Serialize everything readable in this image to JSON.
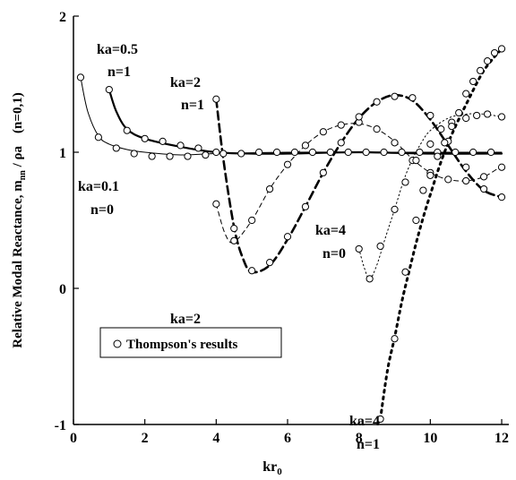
{
  "chart_data": {
    "type": "line",
    "title": "",
    "xlabel": "kr",
    "xlabel_subscript": "0",
    "ylabel": "Relative Modal Reactance,  m",
    "ylabel_subscript": "nn",
    "ylabel_suffix": " / ρa",
    "ylabel_note": "(n=0,1)",
    "xlim": [
      0,
      12.2
    ],
    "ylim": [
      -1,
      2
    ],
    "xticks": [
      0,
      2,
      4,
      6,
      8,
      10,
      12
    ],
    "yticks": [
      -1,
      0,
      1,
      2
    ],
    "xtick_labels": [
      "0",
      "2",
      "4",
      "6",
      "8",
      "10",
      "12"
    ],
    "ytick_labels": [
      "-1",
      "0",
      "1",
      "2"
    ],
    "grid": false,
    "legend": {
      "marker": "open-circle",
      "label": "Thompson's results",
      "position": "lower-left"
    },
    "series": [
      {
        "label_lines": [
          "ka=0.1",
          "n=0"
        ],
        "style": "solid-thin",
        "line": {
          "x": [
            0.2,
            0.4,
            0.7,
            1.0,
            1.5,
            2.0,
            3.0,
            4.0,
            6.0,
            8.0,
            10.0,
            12.0
          ],
          "y": [
            1.55,
            1.3,
            1.12,
            1.06,
            1.02,
            1.0,
            0.98,
            0.99,
            1.0,
            1.0,
            1.0,
            1.0
          ]
        },
        "markers": {
          "x": [
            0.2,
            0.7,
            1.2,
            1.7,
            2.2,
            2.7,
            3.2,
            3.7,
            4.2,
            4.7,
            5.2,
            5.7,
            6.2,
            6.7,
            7.2,
            7.7,
            8.2,
            8.7,
            9.2,
            9.7,
            10.2,
            10.7,
            11.2,
            11.7
          ],
          "y": [
            1.55,
            1.11,
            1.03,
            0.99,
            0.97,
            0.97,
            0.97,
            0.98,
            0.99,
            0.99,
            1.0,
            1.0,
            1.0,
            1.0,
            1.0,
            1.0,
            1.0,
            1.0,
            1.0,
            1.0,
            1.0,
            1.0,
            1.0,
            1.0
          ]
        }
      },
      {
        "label_lines": [
          "ka=0.5",
          "n=1"
        ],
        "style": "solid-thick",
        "line": {
          "x": [
            1.0,
            1.2,
            1.5,
            2.0,
            3.0,
            4.0,
            5.0,
            6.0,
            8.0,
            10.0,
            12.0
          ],
          "y": [
            1.46,
            1.3,
            1.17,
            1.1,
            1.04,
            1.0,
            0.99,
            0.99,
            1.0,
            0.99,
            0.99
          ]
        },
        "markers": {
          "x": [
            1.0,
            1.5,
            2.0,
            2.5,
            3.0,
            3.5,
            4.0
          ],
          "y": [
            1.46,
            1.16,
            1.1,
            1.08,
            1.05,
            1.03,
            1.0
          ]
        }
      },
      {
        "label_lines": [
          "ka=2",
          "n=0"
        ],
        "style": "dashed-thin",
        "line": {
          "x": [
            4.0,
            4.25,
            4.5,
            5.0,
            5.5,
            6.0,
            6.5,
            7.0,
            7.5,
            8.0,
            8.5,
            9.0,
            9.5,
            10.0,
            10.5,
            11.0,
            11.5,
            12.0
          ],
          "y": [
            0.62,
            0.4,
            0.34,
            0.5,
            0.73,
            0.91,
            1.05,
            1.15,
            1.2,
            1.21,
            1.17,
            1.08,
            0.95,
            0.85,
            0.8,
            0.79,
            0.82,
            0.9
          ]
        },
        "markers": {
          "x": [
            4.0,
            4.5,
            5.0,
            5.5,
            6.0,
            6.5,
            7.0,
            7.5,
            8.0,
            8.5,
            9.0,
            9.5,
            10.0,
            10.5,
            11.0,
            11.5,
            12.0
          ],
          "y": [
            0.62,
            0.35,
            0.5,
            0.73,
            0.91,
            1.05,
            1.15,
            1.2,
            1.22,
            1.17,
            1.07,
            0.94,
            0.85,
            0.8,
            0.79,
            0.82,
            0.89
          ]
        }
      },
      {
        "label_lines": [
          "ka=2",
          "n=1"
        ],
        "style": "dashed-thick",
        "line": {
          "x": [
            4.0,
            4.2,
            4.5,
            4.75,
            5.0,
            5.5,
            6.0,
            6.5,
            7.0,
            7.5,
            8.0,
            8.5,
            9.0,
            9.5,
            10.0,
            10.5,
            11.0,
            11.5,
            12.0
          ],
          "y": [
            1.39,
            0.95,
            0.45,
            0.22,
            0.12,
            0.17,
            0.36,
            0.6,
            0.85,
            1.07,
            1.25,
            1.37,
            1.42,
            1.38,
            1.24,
            1.05,
            0.86,
            0.72,
            0.67
          ]
        },
        "markers": {
          "x": [
            4.0,
            4.5,
            5.0,
            5.5,
            6.0,
            6.5,
            7.0,
            7.5,
            8.0,
            8.5,
            9.0,
            9.5,
            10.0,
            10.5,
            11.0,
            11.5,
            12.0
          ],
          "y": [
            1.39,
            0.44,
            0.13,
            0.19,
            0.38,
            0.6,
            0.85,
            1.07,
            1.26,
            1.37,
            1.41,
            1.4,
            1.27,
            1.08,
            0.89,
            0.73,
            0.67
          ]
        }
      },
      {
        "label_lines": [
          "ka=4",
          "n=0"
        ],
        "style": "dotted-thin",
        "line": {
          "x": [
            8.0,
            8.15,
            8.3,
            8.5,
            8.75,
            9.0,
            9.25,
            9.5,
            9.75,
            10.0,
            10.5,
            11.0,
            11.5,
            12.0
          ],
          "y": [
            0.29,
            0.15,
            0.07,
            0.17,
            0.38,
            0.58,
            0.79,
            0.95,
            1.07,
            1.16,
            1.25,
            1.28,
            1.28,
            1.26
          ]
        },
        "markers": {
          "x": [
            8.0,
            8.3,
            8.6,
            9.0,
            9.3,
            9.6,
            10.0,
            10.3,
            10.6,
            11.0,
            11.3,
            11.6,
            12.0
          ],
          "y": [
            0.29,
            0.07,
            0.31,
            0.58,
            0.78,
            0.94,
            1.06,
            1.17,
            1.22,
            1.25,
            1.27,
            1.28,
            1.26
          ]
        }
      },
      {
        "label_lines": [
          "ka=4",
          "n=1"
        ],
        "style": "dotted-thick",
        "line": {
          "x": [
            8.6,
            8.8,
            9.0,
            9.2,
            9.4,
            9.6,
            9.8,
            10.0,
            10.3,
            10.6,
            11.0,
            11.5,
            12.0
          ],
          "y": [
            -0.96,
            -0.6,
            -0.36,
            -0.1,
            0.12,
            0.33,
            0.52,
            0.69,
            0.93,
            1.13,
            1.35,
            1.6,
            1.76
          ]
        },
        "markers": {
          "x": [
            8.6,
            9.0,
            9.3,
            9.6,
            9.8,
            10.0,
            10.2,
            10.4,
            10.6,
            10.8,
            11.0,
            11.2,
            11.4,
            11.6,
            11.8,
            12.0
          ],
          "y": [
            -0.96,
            -0.37,
            0.12,
            0.5,
            0.72,
            0.83,
            0.97,
            1.07,
            1.19,
            1.29,
            1.43,
            1.52,
            1.6,
            1.67,
            1.73,
            1.76
          ]
        }
      }
    ]
  }
}
